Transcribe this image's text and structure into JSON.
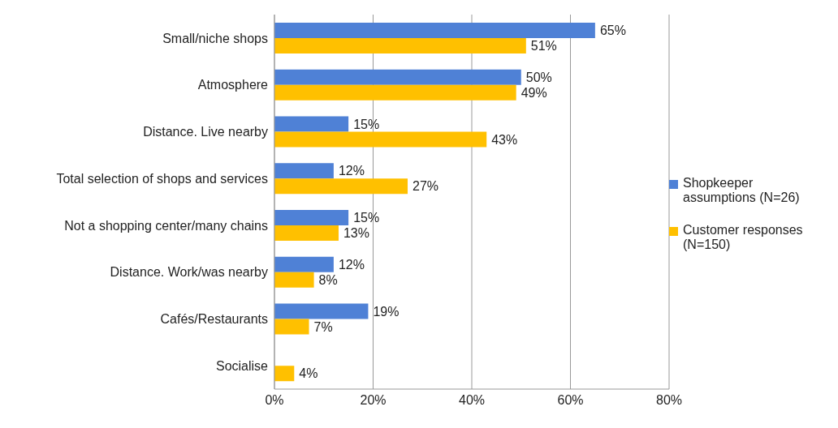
{
  "chart_data": {
    "type": "bar",
    "orientation": "horizontal",
    "categories": [
      "Small/niche shops",
      "Atmosphere",
      "Distance. Live nearby",
      "Total selection of shops and services",
      "Not a shopping center/many chains",
      "Distance. Work/was nearby",
      "Cafés/Restaurants",
      "Socialise"
    ],
    "series": [
      {
        "name": "Shopkeeper assumptions (N=26)",
        "color": "#4f81d6",
        "values": [
          65,
          50,
          15,
          12,
          15,
          12,
          19,
          null
        ],
        "value_labels": [
          "65%",
          "50%",
          "15%",
          "12%",
          "15%",
          "12%",
          "19%",
          null
        ]
      },
      {
        "name": "Customer responses (N=150)",
        "color": "#ffc000",
        "values": [
          51,
          49,
          43,
          27,
          13,
          8,
          7,
          4
        ],
        "value_labels": [
          "51%",
          "49%",
          "43%",
          "27%",
          "13%",
          "8%",
          "7%",
          "4%"
        ]
      }
    ],
    "xlim": [
      0,
      80
    ],
    "xticks": [
      {
        "value": 0,
        "label": "0%"
      },
      {
        "value": 20,
        "label": "20%"
      },
      {
        "value": 40,
        "label": "40%"
      },
      {
        "value": 60,
        "label": "60%"
      },
      {
        "value": 80,
        "label": "80%"
      }
    ],
    "grid": "x",
    "legend": "right"
  }
}
